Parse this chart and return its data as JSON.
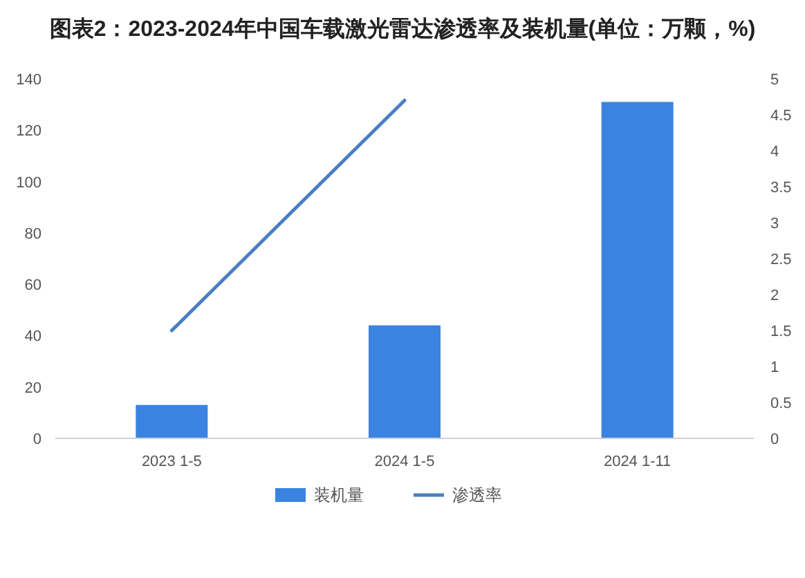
{
  "chart_data": {
    "type": "bar",
    "title": "图表2：2023-2024年中国车载激光雷达渗透率及装机量(单位：万颗，%)",
    "categories": [
      "2023 1-5",
      "2024 1-5",
      "2024 1-11"
    ],
    "series": [
      {
        "name": "装机量",
        "color": "#3a83e0",
        "values": [
          13,
          44,
          131
        ]
      },
      {
        "name": "渗透率",
        "type": "line",
        "axis": "y2",
        "color": "#4a7fc4",
        "values": [
          1.5,
          4.7,
          null
        ]
      }
    ],
    "ylim": [
      0,
      140
    ],
    "yticks": [
      0,
      20,
      40,
      60,
      80,
      100,
      120,
      140
    ],
    "y2lim": [
      0,
      5
    ],
    "y2ticks": [
      0,
      0.5,
      1,
      1.5,
      2,
      2.5,
      3,
      3.5,
      4,
      4.5,
      5
    ],
    "grid": false,
    "legend": "bottom"
  }
}
